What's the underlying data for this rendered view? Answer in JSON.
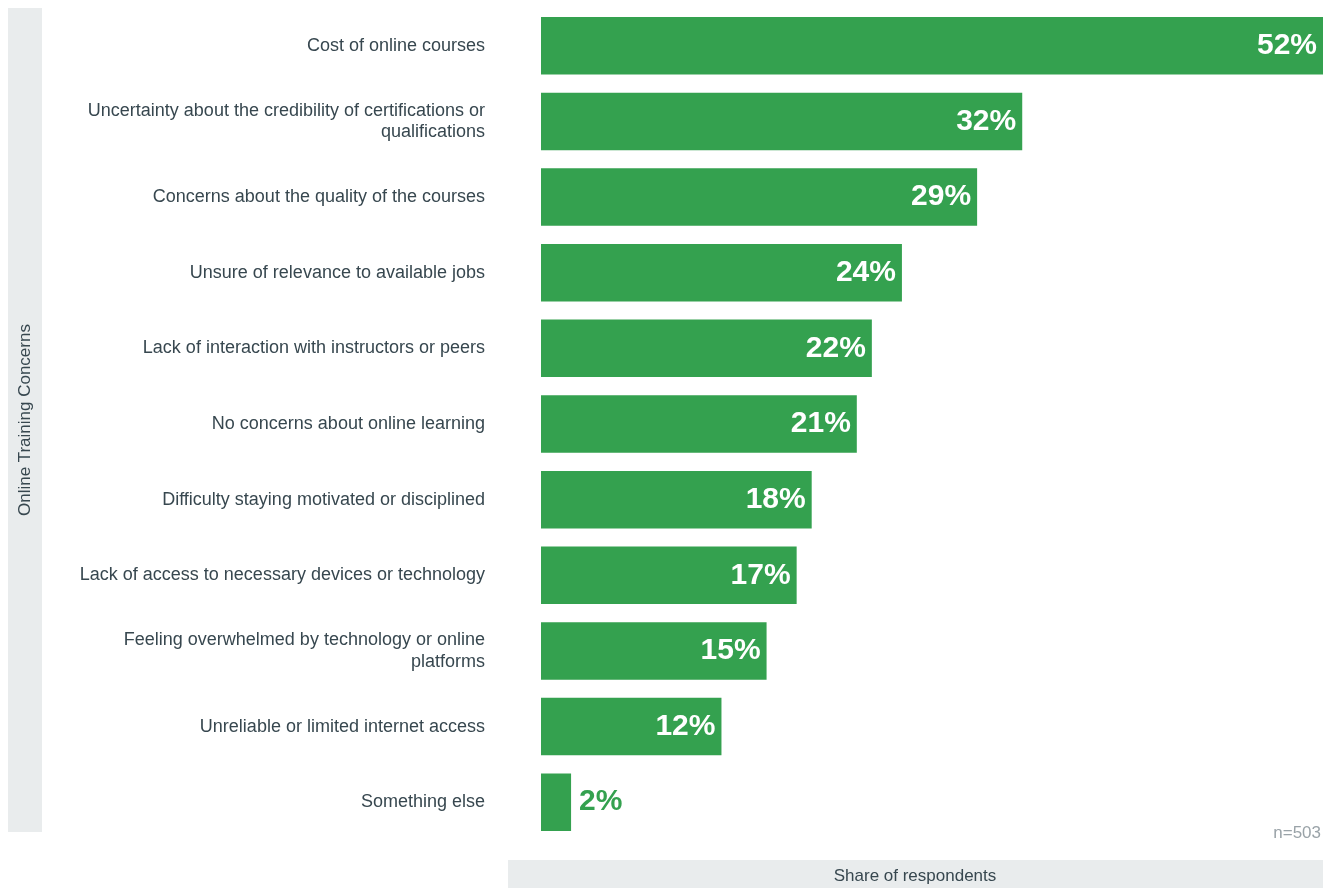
{
  "chart_data": {
    "type": "bar",
    "orientation": "horizontal",
    "xlabel": "Share of respondents",
    "ylabel": "Online Training Concerns",
    "categories": [
      "Cost of online courses",
      "Uncertainty about the credibility of certifications or qualifications",
      "Concerns about the quality of the courses",
      "Unsure of relevance to available jobs",
      "Lack of interaction with instructors or peers",
      "No concerns about online learning",
      "Difficulty staying motivated or disciplined",
      "Lack of access to necessary devices or technology",
      "Feeling overwhelmed by technology or online platforms",
      "Unreliable or limited internet access",
      "Something else"
    ],
    "values": [
      52,
      32,
      29,
      24,
      22,
      21,
      18,
      17,
      15,
      12,
      2
    ],
    "value_labels": [
      "52%",
      "32%",
      "29%",
      "24%",
      "22%",
      "21%",
      "18%",
      "17%",
      "15%",
      "12%",
      "2%"
    ],
    "color": "#34a14f",
    "annotations": [
      "n=503"
    ],
    "grid": false
  }
}
